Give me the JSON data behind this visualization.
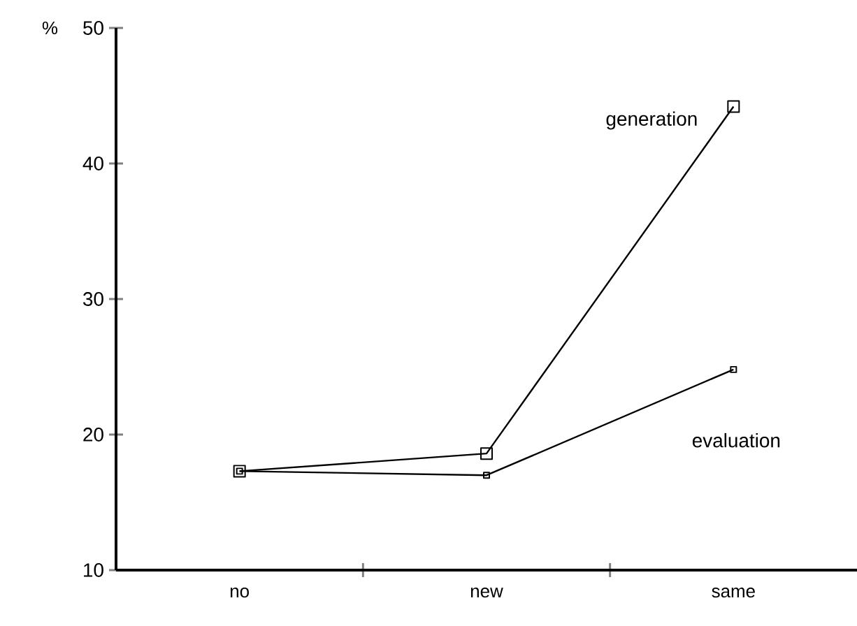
{
  "chart_data": {
    "type": "line",
    "ylabel": "%",
    "categories": [
      "no",
      "new",
      "same"
    ],
    "series": [
      {
        "name": "generation",
        "color": "#000000",
        "marker": "square",
        "values": [
          17.3,
          18.6,
          44.2
        ]
      },
      {
        "name": "evaluation",
        "color": "#000000",
        "marker": "square",
        "values": [
          17.3,
          17.0,
          24.8
        ]
      }
    ],
    "ylim": [
      10,
      50
    ],
    "yticks": [
      10,
      20,
      30,
      40,
      50
    ],
    "grid": false,
    "line_style": "solid"
  }
}
